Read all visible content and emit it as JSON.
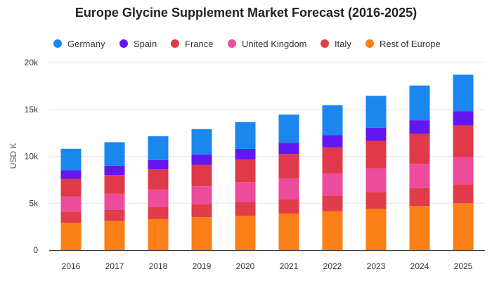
{
  "chart_data": {
    "type": "bar",
    "stacked": true,
    "title": "Europe Glycine Supplement Market Forecast (2016-2025)",
    "xlabel": "",
    "ylabel": "USD K",
    "ylim": [
      0,
      20000
    ],
    "yticks": [
      0,
      5000,
      10000,
      15000,
      20000
    ],
    "ytick_labels": [
      "0",
      "5k",
      "10k",
      "15k",
      "20k"
    ],
    "grid": true,
    "legend_position": "top",
    "categories": [
      "2016",
      "2017",
      "2018",
      "2019",
      "2020",
      "2021",
      "2022",
      "2023",
      "2024",
      "2025"
    ],
    "series": [
      {
        "name": "Rest of Europe",
        "color": "#FA7F16",
        "values": [
          2900,
          3100,
          3300,
          3500,
          3650,
          3900,
          4150,
          4400,
          4700,
          5000
        ]
      },
      {
        "name": "Italy",
        "color": "#E03C4A",
        "values": [
          1200,
          1200,
          1300,
          1400,
          1500,
          1550,
          1650,
          1800,
          1900,
          2000
        ]
      },
      {
        "name": "United Kingdom",
        "color": "#EC4C9B",
        "values": [
          1600,
          1700,
          1850,
          1900,
          2100,
          2200,
          2400,
          2500,
          2600,
          2900
        ]
      },
      {
        "name": "France",
        "color": "#E0394A",
        "values": [
          1900,
          2000,
          2150,
          2300,
          2400,
          2600,
          2750,
          2950,
          3200,
          3400
        ]
      },
      {
        "name": "Spain",
        "color": "#6317F0",
        "values": [
          900,
          1000,
          1000,
          1100,
          1150,
          1200,
          1300,
          1400,
          1450,
          1500
        ]
      },
      {
        "name": "Germany",
        "color": "#1A86EE",
        "values": [
          2300,
          2500,
          2550,
          2700,
          2850,
          3000,
          3200,
          3400,
          3700,
          3900
        ]
      }
    ]
  },
  "legend": [
    {
      "label": "Germany",
      "color": "#1A86EE"
    },
    {
      "label": "Spain",
      "color": "#6317F0"
    },
    {
      "label": "France",
      "color": "#E0394A"
    },
    {
      "label": "United Kingdom",
      "color": "#EC4C9B"
    },
    {
      "label": "Italy",
      "color": "#E03C4A"
    },
    {
      "label": "Rest of Europe",
      "color": "#FA7F16"
    }
  ]
}
